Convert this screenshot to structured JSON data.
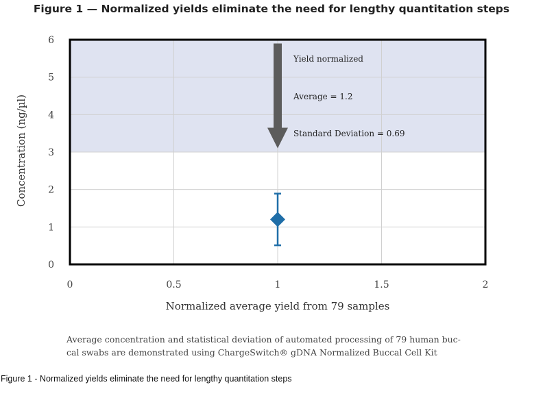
{
  "figure_title": "Figure 1 — Normalized yields eliminate the need for lengthy quantitation steps",
  "caption_lines": [
    "Average concentration and statistical deviation of automated processing of 79 human buc-",
    "cal swabs are demonstrated using ChargeSwitch® gDNA Normalized Buccal Cell Kit"
  ],
  "footer_text": "Figure 1 - Normalized yields eliminate the need for lengthy quantitation steps",
  "colors": {
    "band": "#dfe3f1",
    "arrow": "#5c5c5c",
    "point": "#1f6ea8",
    "grid": "#d0d0d0",
    "frame": "#000000"
  },
  "chart_data": {
    "type": "scatter",
    "xlabel": "Normalized average yield from 79 samples",
    "ylabel": "Concentration (ng/µl)",
    "xlim": [
      0,
      2
    ],
    "ylim": [
      0,
      6
    ],
    "x_ticks": [
      "0",
      "0.5",
      "1",
      "1.5",
      "2"
    ],
    "y_ticks": [
      "0",
      "1",
      "2",
      "3",
      "4",
      "5",
      "6"
    ],
    "grid": true,
    "shaded_band": {
      "y_from": 3,
      "y_to": 6
    },
    "arrow": {
      "x": 1,
      "y_from": 5.9,
      "y_to": 3.1,
      "direction": "down"
    },
    "points": [
      {
        "x": 1,
        "y": 1.2,
        "error_low": 0.51,
        "error_high": 1.89
      }
    ],
    "annotations": [
      "Yield normalized",
      "Average = 1.2",
      "Standard Deviation = 0.69"
    ]
  }
}
